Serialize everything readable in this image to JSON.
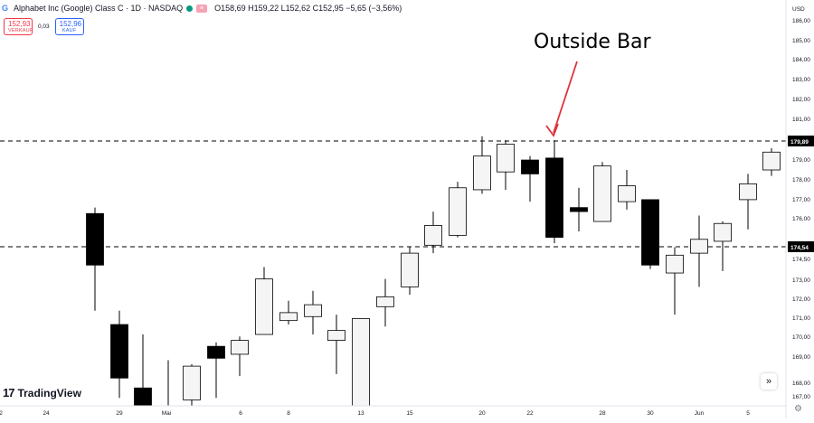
{
  "header": {
    "title": "Alphabet Inc (Google) Class C · 1D · NASDAQ",
    "ohlc": "O158,69 H159,22 L152,62 C152,95 −5,65 (−3,56%)",
    "sell_price": "152,93",
    "sell_label": "VERKAUF",
    "spread": "0,03",
    "buy_price": "152,96",
    "buy_label": "KAUF",
    "currency": "USD"
  },
  "logo": {
    "mark": "17",
    "text": "TradingView"
  },
  "icons": {
    "scroll_right": "double-chevron-right-icon",
    "settings": "gear-icon"
  },
  "colors": {
    "bull_fill": "#f5f5f5",
    "bear_fill": "#000000",
    "candle_stroke": "#000000",
    "grid_line": "#000000",
    "annotation_arrow": "#e0323e",
    "axis_text": "#131722",
    "price_tag_bg": "#000000",
    "price_tag_text": "#ffffff"
  },
  "annotation": {
    "text": "Outside Bar",
    "points_to": "Apr 23"
  },
  "chart_data": {
    "type": "candlestick",
    "x_tick_labels": [
      "2",
      "24",
      "29",
      "Mai",
      "6",
      "8",
      "13",
      "15",
      "20",
      "22",
      "28",
      "30",
      "Jun",
      "5"
    ],
    "y_ticks": [
      167,
      168,
      169,
      170,
      171,
      172,
      173,
      174.5,
      176,
      177,
      178,
      179,
      181,
      182,
      183,
      184,
      185,
      186
    ],
    "y_tick_labels": [
      "167,00",
      "168,00",
      "169,00",
      "170,00",
      "171,00",
      "172,00",
      "173,00",
      "174,50",
      "176,00",
      "177,00",
      "178,00",
      "179,00",
      "181,00",
      "182,00",
      "183,00",
      "184,00",
      "185,00",
      "186,00"
    ],
    "ylim": [
      166.5,
      187.5
    ],
    "horizontal_levels": [
      {
        "value": 179.89,
        "label": "179,89",
        "style": "dashed"
      },
      {
        "value": 174.54,
        "label": "174,54",
        "style": "dashed"
      }
    ],
    "candles": [
      {
        "date": "Apr 23",
        "o": 176.2,
        "h": 176.5,
        "l": 171.3,
        "c": 173.6
      },
      {
        "date": "Apr 24",
        "o": 170.6,
        "h": 171.3,
        "l": 166.9,
        "c": 167.9
      },
      {
        "date": "Apr 25",
        "o": 167.4,
        "h": 170.1,
        "l": 165.6,
        "c": 165.8
      },
      {
        "date": "Apr 26",
        "o": 165.7,
        "h": 168.8,
        "l": 164.7,
        "c": 165.5
      },
      {
        "date": "Apr 29",
        "o": 166.8,
        "h": 168.6,
        "l": 165.2,
        "c": 168.5
      },
      {
        "date": "Apr 30",
        "o": 169.5,
        "h": 169.7,
        "l": 166.9,
        "c": 168.9
      },
      {
        "date": "May 1",
        "o": 169.1,
        "h": 170.0,
        "l": 168.0,
        "c": 169.8
      },
      {
        "date": "May 2",
        "o": 170.1,
        "h": 173.5,
        "l": 170.1,
        "c": 172.9
      },
      {
        "date": "May 3",
        "o": 170.8,
        "h": 171.8,
        "l": 170.6,
        "c": 171.2
      },
      {
        "date": "May 6",
        "o": 171.0,
        "h": 172.3,
        "l": 170.1,
        "c": 171.6
      },
      {
        "date": "May 7",
        "o": 169.8,
        "h": 171.1,
        "l": 168.1,
        "c": 170.3
      },
      {
        "date": "May 8",
        "o": 165.3,
        "h": 170.9,
        "l": 165.0,
        "c": 170.9
      },
      {
        "date": "May 9",
        "o": 171.5,
        "h": 172.9,
        "l": 170.5,
        "c": 172.0
      },
      {
        "date": "May 10",
        "o": 172.5,
        "h": 174.5,
        "l": 172.1,
        "c": 174.2
      },
      {
        "date": "May 13",
        "o": 174.6,
        "h": 176.3,
        "l": 174.2,
        "c": 175.6
      },
      {
        "date": "May 14",
        "o": 175.1,
        "h": 177.8,
        "l": 175.0,
        "c": 177.5
      },
      {
        "date": "May 15",
        "o": 177.4,
        "h": 180.1,
        "l": 177.2,
        "c": 179.1
      },
      {
        "date": "May 16",
        "o": 178.3,
        "h": 179.9,
        "l": 177.4,
        "c": 179.7
      },
      {
        "date": "May 17",
        "o": 178.9,
        "h": 179.1,
        "l": 176.8,
        "c": 178.2
      },
      {
        "date": "May 20",
        "o": 179.0,
        "h": 179.9,
        "l": 174.7,
        "c": 175.0
      },
      {
        "date": "May 21",
        "o": 176.5,
        "h": 177.5,
        "l": 175.3,
        "c": 176.3
      },
      {
        "date": "May 22",
        "o": 175.8,
        "h": 178.8,
        "l": 175.8,
        "c": 178.6
      },
      {
        "date": "May 23",
        "o": 176.8,
        "h": 178.4,
        "l": 176.4,
        "c": 177.6
      },
      {
        "date": "May 24",
        "o": 176.9,
        "h": 176.9,
        "l": 173.4,
        "c": 173.6
      },
      {
        "date": "May 28",
        "o": 173.2,
        "h": 174.5,
        "l": 171.1,
        "c": 174.1
      },
      {
        "date": "May 29",
        "o": 174.2,
        "h": 176.1,
        "l": 172.5,
        "c": 174.9
      },
      {
        "date": "May 30",
        "o": 174.8,
        "h": 175.8,
        "l": 173.3,
        "c": 175.7
      },
      {
        "date": "May 31",
        "o": 176.9,
        "h": 178.2,
        "l": 175.4,
        "c": 177.7
      },
      {
        "date": "Jun 3",
        "o": 178.4,
        "h": 179.5,
        "l": 178.1,
        "c": 179.3
      }
    ]
  }
}
